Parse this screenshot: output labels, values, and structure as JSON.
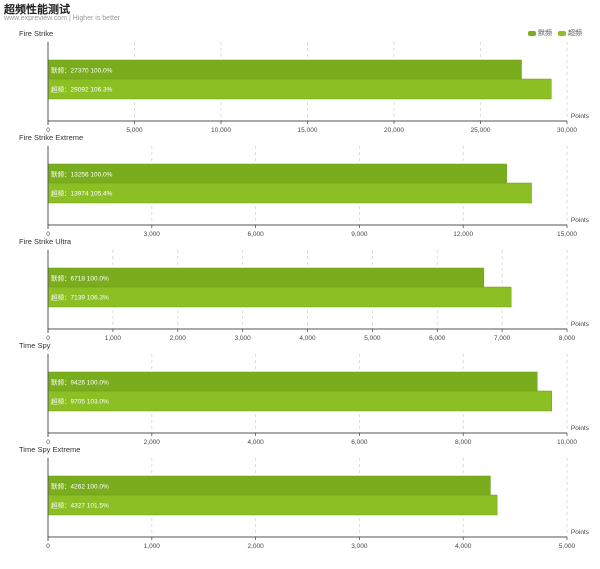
{
  "header": {
    "title": "超频性能测试",
    "subtitle": "www.expreview.com | Higher is better"
  },
  "legend": [
    {
      "label": "默频",
      "color": "#79ad1d"
    },
    {
      "label": "超频",
      "color": "#8bbf24"
    }
  ],
  "chart_data": [
    {
      "type": "bar",
      "title": "Fire Strike",
      "xlabel": "Points",
      "xlim": [
        0,
        30000
      ],
      "ticks": [
        "0",
        "5,000",
        "10,000",
        "15,000",
        "20,000",
        "25,000",
        "30,000"
      ],
      "tick_values": [
        0,
        5000,
        10000,
        15000,
        20000,
        25000,
        30000
      ],
      "series": [
        {
          "name": "默频",
          "value": 27370,
          "label": "默频：27370  100.0%"
        },
        {
          "name": "超频",
          "value": 29092,
          "label": "超频：29092  106.3%"
        }
      ]
    },
    {
      "type": "bar",
      "title": "Fire Strike Extreme",
      "xlabel": "Points",
      "xlim": [
        0,
        15000
      ],
      "ticks": [
        "0",
        "3,000",
        "6,000",
        "9,000",
        "12,000",
        "15,000"
      ],
      "tick_values": [
        0,
        3000,
        6000,
        9000,
        12000,
        15000
      ],
      "series": [
        {
          "name": "默频",
          "value": 13256,
          "label": "默频：13256  100.0%"
        },
        {
          "name": "超频",
          "value": 13974,
          "label": "超频：13974  105.4%"
        }
      ]
    },
    {
      "type": "bar",
      "title": "Fire Strike Ultra",
      "xlabel": "Points",
      "xlim": [
        0,
        8000
      ],
      "ticks": [
        "0",
        "1,000",
        "2,000",
        "3,000",
        "4,000",
        "5,000",
        "6,000",
        "7,000",
        "8,000"
      ],
      "tick_values": [
        0,
        1000,
        2000,
        3000,
        4000,
        5000,
        6000,
        7000,
        8000
      ],
      "series": [
        {
          "name": "默频",
          "value": 6718,
          "label": "默频：6718  100.0%"
        },
        {
          "name": "超频",
          "value": 7139,
          "label": "超频：7139  106.3%"
        }
      ]
    },
    {
      "type": "bar",
      "title": "Time Spy",
      "xlabel": "Points",
      "xlim": [
        0,
        10000
      ],
      "ticks": [
        "0",
        "2,000",
        "4,000",
        "6,000",
        "8,000",
        "10,000"
      ],
      "tick_values": [
        0,
        2000,
        4000,
        6000,
        8000,
        10000
      ],
      "series": [
        {
          "name": "默频",
          "value": 9426,
          "label": "默频：9426  100.0%"
        },
        {
          "name": "超频",
          "value": 9705,
          "label": "超频：9705  103.0%"
        }
      ]
    },
    {
      "type": "bar",
      "title": "Time Spy Extreme",
      "xlabel": "Points",
      "xlim": [
        0,
        5000
      ],
      "ticks": [
        "0",
        "1,000",
        "2,000",
        "3,000",
        "4,000",
        "5,000"
      ],
      "tick_values": [
        0,
        1000,
        2000,
        3000,
        4000,
        5000
      ],
      "series": [
        {
          "name": "默频",
          "value": 4262,
          "label": "默频：4262  100.0%"
        },
        {
          "name": "超频",
          "value": 4327,
          "label": "超频：4327  101.5%"
        }
      ]
    }
  ]
}
